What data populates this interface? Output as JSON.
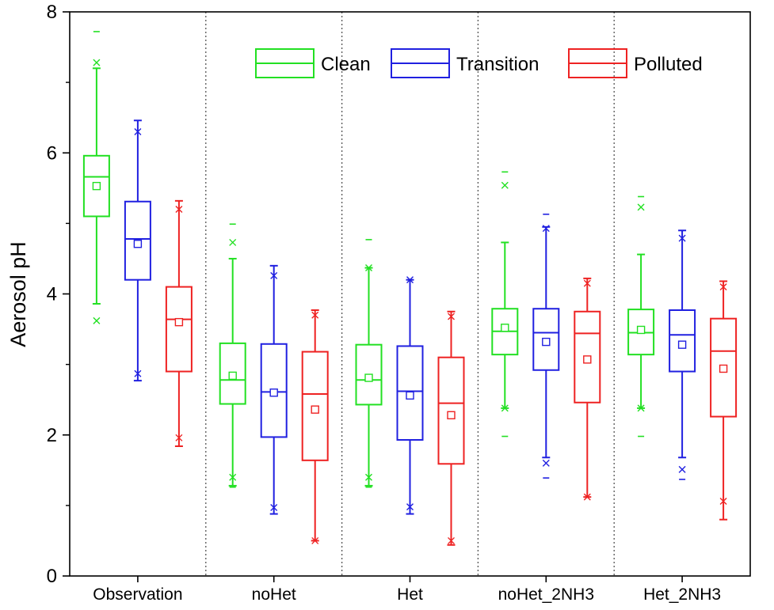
{
  "chart_data": {
    "type": "box",
    "ylabel": "Aerosol pH",
    "ylim": [
      0,
      8
    ],
    "yticks": [
      "0",
      "2",
      "4",
      "6",
      "8"
    ],
    "categories": [
      "Observation",
      "noHet",
      "Het",
      "noHet_2NH3",
      "Het_2NH3"
    ],
    "grid": "vertical dotted separators between groups",
    "legend_position": "top-right",
    "series": [
      {
        "name": "Clean",
        "color": "#22e022",
        "boxes": [
          {
            "min": 3.86,
            "q1": 5.1,
            "median": 5.66,
            "q3": 5.96,
            "max": 7.2,
            "mean": 5.53,
            "p1": 3.62,
            "p99": 7.28,
            "abs_min": null,
            "abs_max": 7.72
          },
          {
            "min": 1.28,
            "q1": 2.44,
            "median": 2.78,
            "q3": 3.3,
            "max": 4.5,
            "mean": 2.84,
            "p1": 1.4,
            "p99": 4.73,
            "abs_min": 1.26,
            "abs_max": 4.99
          },
          {
            "min": 1.28,
            "q1": 2.43,
            "median": 2.78,
            "q3": 3.28,
            "max": 4.37,
            "mean": 2.81,
            "p1": 1.4,
            "p99": 4.37,
            "abs_min": 1.26,
            "abs_max": 4.77
          },
          {
            "min": 2.38,
            "q1": 3.14,
            "median": 3.47,
            "q3": 3.79,
            "max": 4.73,
            "mean": 3.52,
            "p1": 2.38,
            "p99": 5.54,
            "abs_min": 1.98,
            "abs_max": 5.73
          },
          {
            "min": 2.38,
            "q1": 3.14,
            "median": 3.45,
            "q3": 3.78,
            "max": 4.56,
            "mean": 3.49,
            "p1": 2.38,
            "p99": 5.23,
            "abs_min": 1.98,
            "abs_max": 5.38
          }
        ]
      },
      {
        "name": "Transition",
        "color": "#2020e0",
        "boxes": [
          {
            "min": 2.77,
            "q1": 4.2,
            "median": 4.78,
            "q3": 5.31,
            "max": 6.46,
            "mean": 4.71,
            "p1": 2.87,
            "p99": 6.3,
            "abs_min": null,
            "abs_max": null
          },
          {
            "min": 0.88,
            "q1": 1.97,
            "median": 2.61,
            "q3": 3.29,
            "max": 4.4,
            "mean": 2.6,
            "p1": 0.97,
            "p99": 4.26,
            "abs_min": null,
            "abs_max": null
          },
          {
            "min": 0.88,
            "q1": 1.93,
            "median": 2.62,
            "q3": 3.26,
            "max": 4.2,
            "mean": 2.56,
            "p1": 0.98,
            "p99": 4.2,
            "abs_min": null,
            "abs_max": null
          },
          {
            "min": 1.68,
            "q1": 2.92,
            "median": 3.45,
            "q3": 3.79,
            "max": 4.95,
            "mean": 3.32,
            "p1": 1.6,
            "p99": 4.93,
            "abs_min": 1.39,
            "abs_max": 5.13
          },
          {
            "min": 1.68,
            "q1": 2.9,
            "median": 3.42,
            "q3": 3.77,
            "max": 4.9,
            "mean": 3.28,
            "p1": 1.51,
            "p99": 4.79,
            "abs_min": 1.37,
            "abs_max": null
          }
        ]
      },
      {
        "name": "Polluted",
        "color": "#ee2222",
        "boxes": [
          {
            "min": 1.84,
            "q1": 2.9,
            "median": 3.64,
            "q3": 4.1,
            "max": 5.32,
            "mean": 3.6,
            "p1": 1.96,
            "p99": 5.2,
            "abs_min": null,
            "abs_max": null
          },
          {
            "min": 0.5,
            "q1": 1.64,
            "median": 2.58,
            "q3": 3.18,
            "max": 3.77,
            "mean": 2.36,
            "p1": 0.5,
            "p99": 3.7,
            "abs_min": null,
            "abs_max": null
          },
          {
            "min": 0.44,
            "q1": 1.59,
            "median": 2.45,
            "q3": 3.1,
            "max": 3.75,
            "mean": 2.28,
            "p1": 0.5,
            "p99": 3.68,
            "abs_min": null,
            "abs_max": null
          },
          {
            "min": 1.12,
            "q1": 2.46,
            "median": 3.44,
            "q3": 3.75,
            "max": 4.22,
            "mean": 3.07,
            "p1": 1.12,
            "p99": 4.15,
            "abs_min": null,
            "abs_max": null
          },
          {
            "min": 0.8,
            "q1": 2.26,
            "median": 3.19,
            "q3": 3.65,
            "max": 4.18,
            "mean": 2.94,
            "p1": 1.06,
            "p99": 4.1,
            "abs_min": null,
            "abs_max": null
          }
        ]
      }
    ]
  }
}
